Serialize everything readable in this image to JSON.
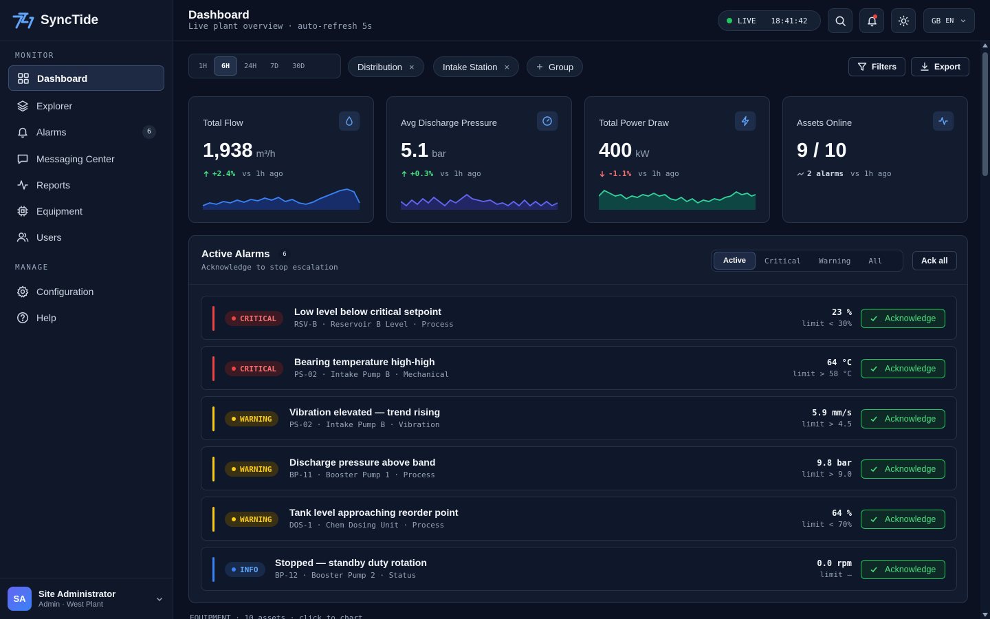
{
  "brand": {
    "name": "SyncTide"
  },
  "sidebar": {
    "sections": [
      {
        "label": "MONITOR"
      },
      {
        "label": "MANAGE"
      }
    ],
    "items": [
      {
        "label": "Dashboard",
        "icon": "grid-icon"
      },
      {
        "label": "Explorer",
        "icon": "layers-icon"
      },
      {
        "label": "Alarms",
        "icon": "bell-icon",
        "badge": "6"
      },
      {
        "label": "Messaging Center",
        "icon": "message-icon"
      },
      {
        "label": "Reports",
        "icon": "activity-icon"
      },
      {
        "label": "Equipment",
        "icon": "chip-icon"
      },
      {
        "label": "Users",
        "icon": "users-icon"
      },
      {
        "label": "Configuration",
        "icon": "gear-icon"
      },
      {
        "label": "Help",
        "icon": "help-icon"
      }
    ],
    "user": {
      "initials": "SA",
      "name": "Site Administrator",
      "role": "Admin · West Plant"
    }
  },
  "header": {
    "title": "Dashboard",
    "subtitle": "Live plant overview · auto-refresh 5s",
    "live": {
      "label": "LIVE",
      "time": "18:41:42"
    },
    "lang": {
      "flag": "GB",
      "code": "EN"
    }
  },
  "toolbar": {
    "ranges": [
      "1H",
      "6H",
      "24H",
      "7D",
      "30D"
    ],
    "active_range": "6H",
    "chips": [
      "Distribution",
      "Intake Station"
    ],
    "chip_close": "×",
    "group_label": "Group",
    "filters_label": "Filters",
    "export_label": "Export"
  },
  "kpis": [
    {
      "label": "Total Flow",
      "value": "1,938",
      "unit": "m³/h",
      "delta": "+2.4%",
      "delta_dir": "up",
      "suffix": "vs 1h ago",
      "color": "#3b82f6",
      "icon": "droplet-icon"
    },
    {
      "label": "Avg Discharge Pressure",
      "value": "5.1",
      "unit": "bar",
      "delta": "+0.3%",
      "delta_dir": "up",
      "suffix": "vs 1h ago",
      "color": "#6366f1",
      "icon": "gauge-icon"
    },
    {
      "label": "Total Power Draw",
      "value": "400",
      "unit": "kW",
      "delta": "-1.1%",
      "delta_dir": "down",
      "suffix": "vs 1h ago",
      "color": "#34d399",
      "icon": "bolt-icon"
    },
    {
      "label": "Assets Online",
      "value": "9 / 10",
      "unit": "",
      "delta": "2 alarms",
      "delta_dir": "flat",
      "suffix": "vs 1h ago",
      "color": "#64748b",
      "icon": "pulse-icon"
    }
  ],
  "alarms": {
    "title": "Active Alarms",
    "count": "6",
    "subtitle": "Acknowledge to stop escalation",
    "tabs": [
      "Active",
      "Critical",
      "Warning",
      "All"
    ],
    "ack_all_label": "Ack all",
    "ack_label": "Acknowledge",
    "rows": [
      {
        "severity": "CRITICAL",
        "title": "Low level below critical setpoint",
        "meta": "RSV-B · Reservoir B Level · Process",
        "value": "23 %",
        "limit": "limit < 30%"
      },
      {
        "severity": "CRITICAL",
        "title": "Bearing temperature high-high",
        "meta": "PS-02 · Intake Pump B · Mechanical",
        "value": "64 °C",
        "limit": "limit > 58 °C"
      },
      {
        "severity": "WARNING",
        "title": "Vibration elevated — trend rising",
        "meta": "PS-02 · Intake Pump B · Vibration",
        "value": "5.9 mm/s",
        "limit": "limit > 4.5"
      },
      {
        "severity": "WARNING",
        "title": "Discharge pressure above band",
        "meta": "BP-11 · Booster Pump 1 · Process",
        "value": "9.8 bar",
        "limit": "limit > 9.0"
      },
      {
        "severity": "WARNING",
        "title": "Tank level approaching reorder point",
        "meta": "DOS-1 · Chem Dosing Unit · Process",
        "value": "64 %",
        "limit": "limit < 70%"
      },
      {
        "severity": "INFO",
        "title": "Stopped — standby duty rotation",
        "meta": "BP-12 · Booster Pump 2 · Status",
        "value": "0.0 rpm",
        "limit": "limit —"
      }
    ]
  },
  "equipment": {
    "label": "EQUIPMENT · 10 assets · click to chart"
  },
  "colors": {
    "critical": "#ef4444",
    "warning": "#facc15",
    "info": "#3b82f6",
    "accent": "#22c55e"
  }
}
